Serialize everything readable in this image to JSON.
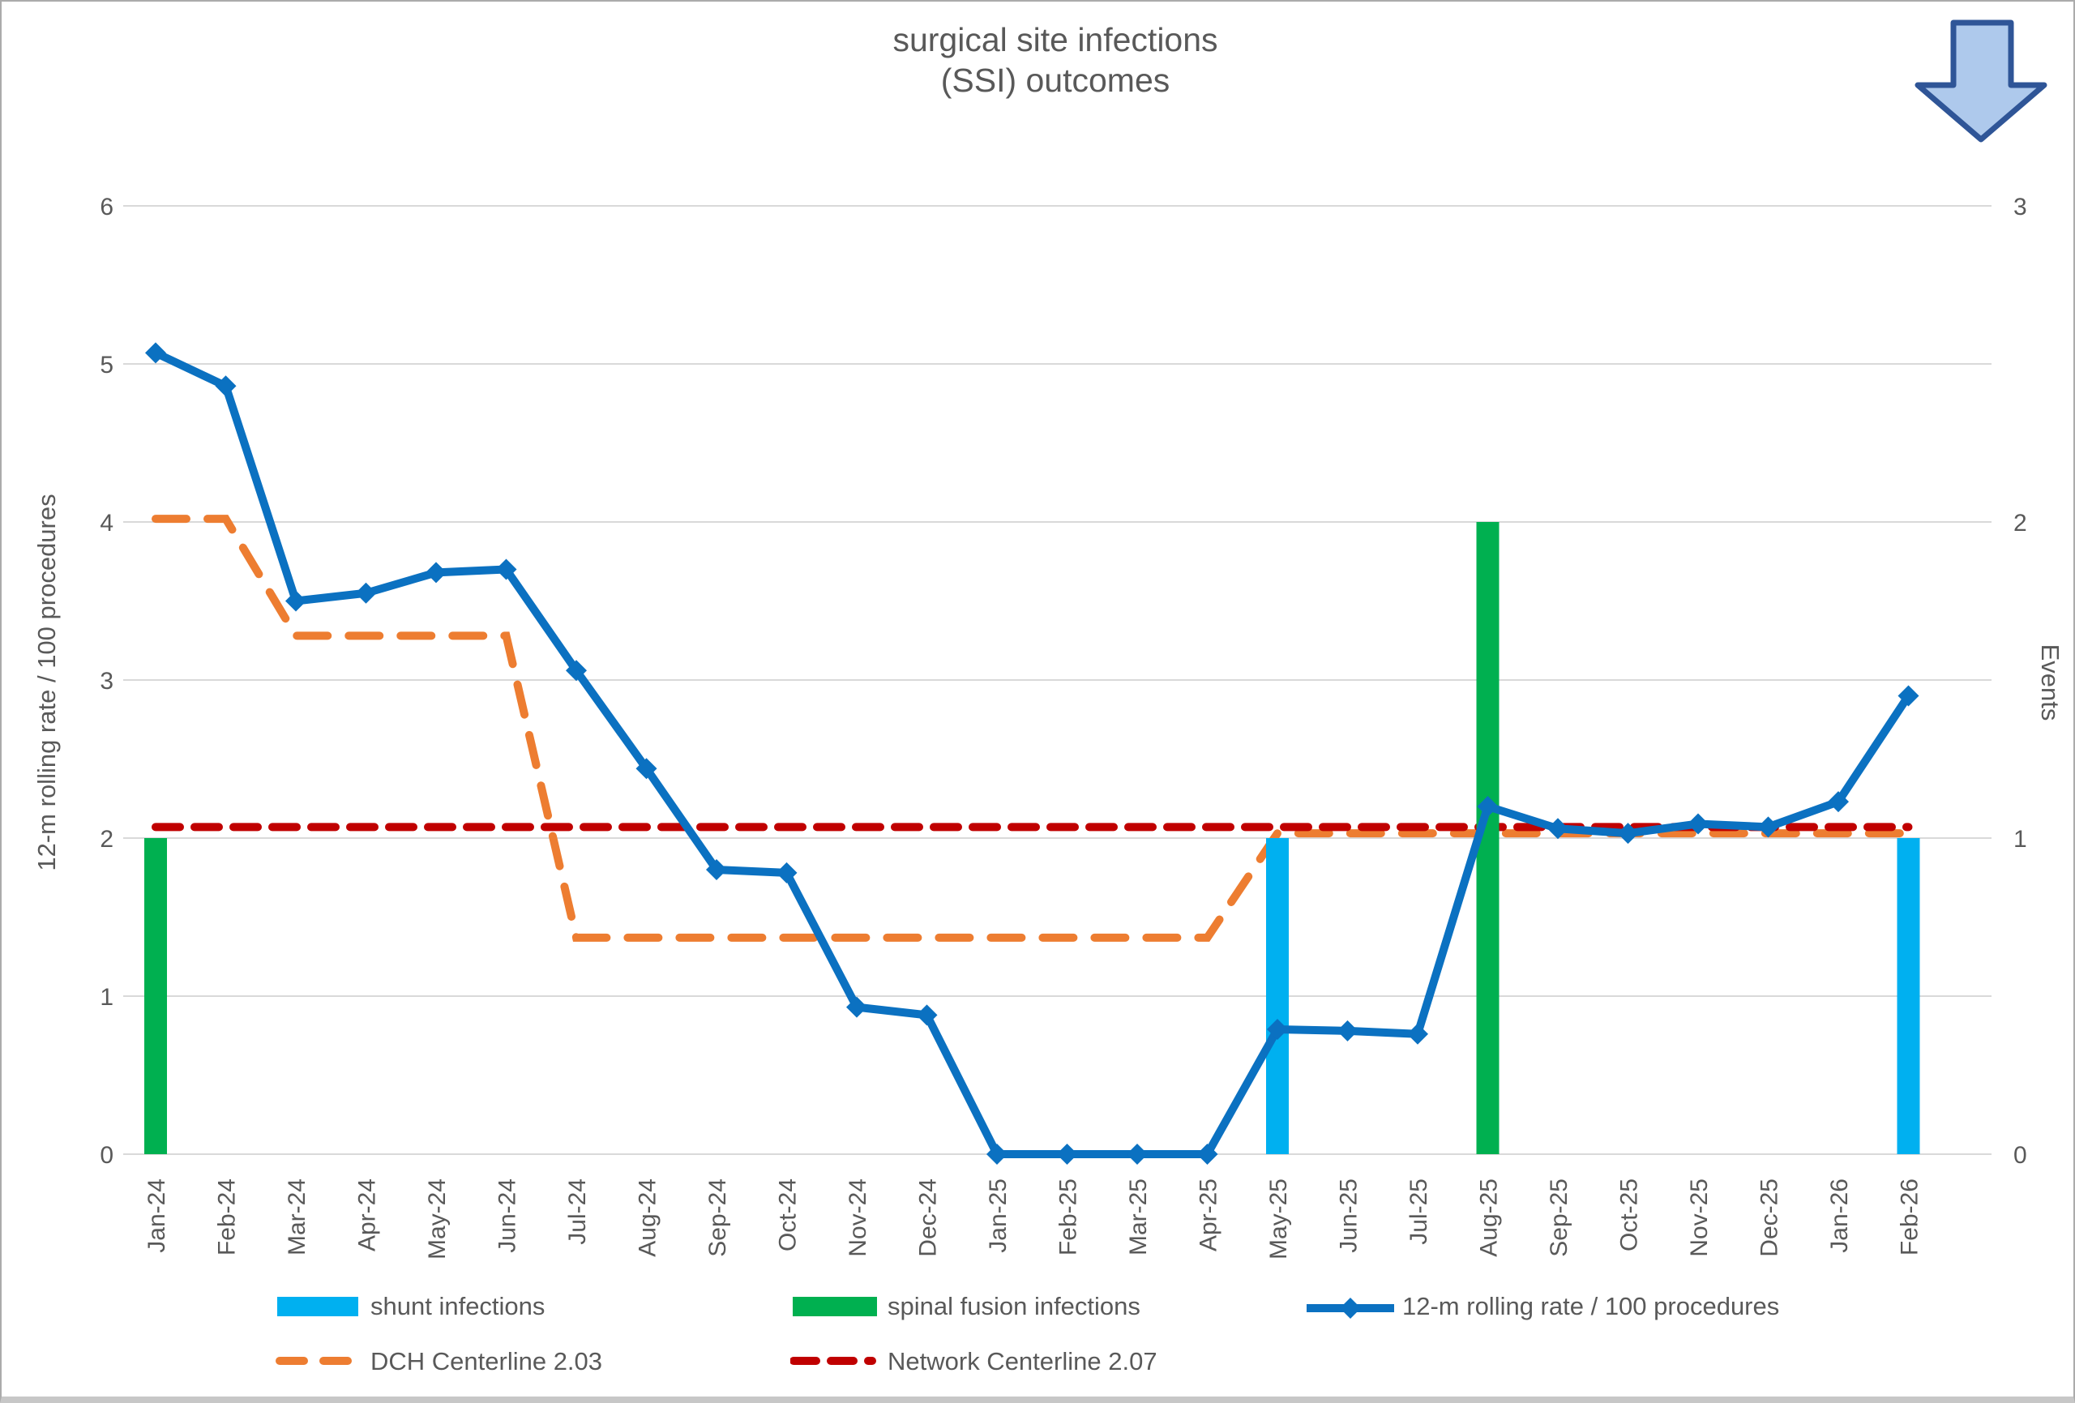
{
  "title": {
    "line1": "surgical site infections",
    "line2": "(SSI) outcomes"
  },
  "colors": {
    "rolling": "#0B71C1",
    "shunt": "#00B0F0",
    "spinal": "#00B050",
    "dch": "#ED7D31",
    "network": "#C00000",
    "text": "#595959",
    "grid": "#D9D9D9",
    "arrow_fill": "#AEC9EC",
    "arrow_stroke": "#2F5597"
  },
  "chart_data": {
    "type": "combo",
    "categories": [
      "Jan-24",
      "Feb-24",
      "Mar-24",
      "Apr-24",
      "May-24",
      "Jun-24",
      "Jul-24",
      "Aug-24",
      "Sep-24",
      "Oct-24",
      "Nov-24",
      "Dec-24",
      "Jan-25",
      "Feb-25",
      "Mar-25",
      "Apr-25",
      "May-25",
      "Jun-25",
      "Jul-25",
      "Aug-25",
      "Sep-25",
      "Oct-25",
      "Nov-25",
      "Dec-25",
      "Jan-26",
      "Feb-26"
    ],
    "series": [
      {
        "name": "shunt infections",
        "type": "bar",
        "axis": "right",
        "color_key": "shunt",
        "values": [
          0,
          0,
          0,
          0,
          0,
          0,
          0,
          0,
          0,
          0,
          0,
          0,
          0,
          0,
          0,
          0,
          1,
          0,
          0,
          0,
          0,
          0,
          0,
          0,
          0,
          1
        ]
      },
      {
        "name": "spinal fusion infections",
        "type": "bar",
        "axis": "right",
        "color_key": "spinal",
        "values": [
          1,
          0,
          0,
          0,
          0,
          0,
          0,
          0,
          0,
          0,
          0,
          0,
          0,
          0,
          0,
          0,
          0,
          0,
          0,
          2,
          0,
          0,
          0,
          0,
          0,
          0
        ]
      },
      {
        "name": "12-m rolling rate / 100 procedures",
        "type": "line",
        "marker": "diamond",
        "axis": "left",
        "color_key": "rolling",
        "values": [
          5.07,
          4.86,
          3.5,
          3.55,
          3.68,
          3.7,
          3.06,
          2.44,
          1.8,
          1.78,
          0.93,
          0.88,
          0,
          0,
          0,
          0,
          0.79,
          0.78,
          0.76,
          2.2,
          2.06,
          2.03,
          2.09,
          2.07,
          2.23,
          2.9
        ]
      },
      {
        "name": "DCH Centerline 2.03",
        "type": "dashed-line",
        "axis": "left",
        "color_key": "dch",
        "values": [
          4.02,
          4.02,
          3.28,
          3.28,
          3.28,
          3.28,
          1.37,
          1.37,
          1.37,
          1.37,
          1.37,
          1.37,
          1.37,
          1.37,
          1.37,
          1.37,
          2.03,
          2.03,
          2.03,
          2.03,
          2.03,
          2.03,
          2.03,
          2.03,
          2.03,
          2.03
        ]
      },
      {
        "name": "Network Centerline 2.07",
        "type": "dashed-line",
        "axis": "left",
        "color_key": "network",
        "values": [
          2.07,
          2.07,
          2.07,
          2.07,
          2.07,
          2.07,
          2.07,
          2.07,
          2.07,
          2.07,
          2.07,
          2.07,
          2.07,
          2.07,
          2.07,
          2.07,
          2.07,
          2.07,
          2.07,
          2.07,
          2.07,
          2.07,
          2.07,
          2.07,
          2.07,
          2.07
        ]
      }
    ],
    "left_axis": {
      "title": "12-m rolling rate / 100 procedures",
      "min": 0,
      "max": 6,
      "ticks": [
        0,
        1,
        2,
        3,
        4,
        5,
        6
      ]
    },
    "right_axis": {
      "title": "Events",
      "min": 0,
      "max": 3,
      "ticks": [
        0,
        1,
        2,
        3
      ]
    },
    "grid": true,
    "legend_position": "bottom",
    "x_labels_rotated_degrees": 90
  }
}
